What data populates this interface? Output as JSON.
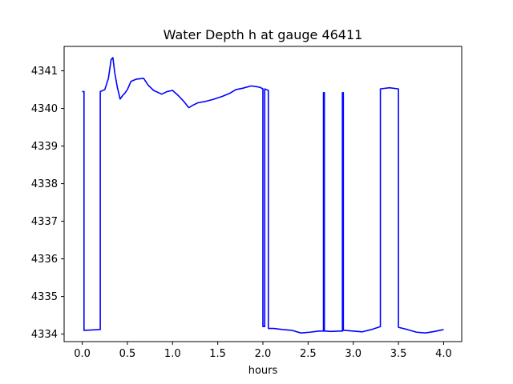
{
  "chart_data": {
    "type": "line",
    "title": "Water Depth h at gauge 46411",
    "xlabel": "hours",
    "ylabel": "",
    "xlim": [
      -0.2,
      4.2
    ],
    "ylim": [
      4333.8,
      4341.65
    ],
    "xticks": [
      0.0,
      0.5,
      1.0,
      1.5,
      2.0,
      2.5,
      3.0,
      3.5,
      4.0
    ],
    "xtick_labels": [
      "0.0",
      "0.5",
      "1.0",
      "1.5",
      "2.0",
      "2.5",
      "3.0",
      "3.5",
      "4.0"
    ],
    "yticks": [
      4334,
      4335,
      4336,
      4337,
      4338,
      4339,
      4340,
      4341
    ],
    "ytick_labels": [
      "4334",
      "4335",
      "4336",
      "4337",
      "4338",
      "4339",
      "4340",
      "4341"
    ],
    "grid": false,
    "series": [
      {
        "color": "#0000ff",
        "x": [
          0.0,
          0.02,
          0.02,
          0.2,
          0.2,
          0.25,
          0.29,
          0.32,
          0.34,
          0.36,
          0.39,
          0.42,
          0.45,
          0.47,
          0.5,
          0.54,
          0.6,
          0.68,
          0.73,
          0.79,
          0.88,
          0.94,
          1.0,
          1.06,
          1.12,
          1.18,
          1.22,
          1.28,
          1.35,
          1.45,
          1.55,
          1.63,
          1.7,
          1.78,
          1.87,
          1.93,
          1.97,
          2.0,
          2.0,
          2.02,
          2.02,
          2.04,
          2.06,
          2.06,
          2.12,
          2.22,
          2.32,
          2.42,
          2.52,
          2.62,
          2.67,
          2.67,
          2.68,
          2.68,
          2.69,
          2.69,
          2.75,
          2.85,
          2.88,
          2.88,
          2.89,
          2.89,
          2.9,
          2.9,
          3.0,
          3.1,
          3.2,
          3.3,
          3.3,
          3.4,
          3.5,
          3.5,
          3.6,
          3.7,
          3.8,
          3.9,
          4.0
        ],
        "y": [
          4340.45,
          4340.45,
          4334.1,
          4334.12,
          4340.45,
          4340.5,
          4340.8,
          4341.3,
          4341.35,
          4340.95,
          4340.55,
          4340.25,
          4340.35,
          4340.4,
          4340.5,
          4340.72,
          4340.78,
          4340.8,
          4340.62,
          4340.48,
          4340.38,
          4340.45,
          4340.48,
          4340.35,
          4340.2,
          4340.02,
          4340.08,
          4340.15,
          4340.18,
          4340.24,
          4340.32,
          4340.4,
          4340.5,
          4340.54,
          4340.6,
          4340.58,
          4340.56,
          4340.52,
          4334.2,
          4334.2,
          4340.52,
          4340.5,
          4340.48,
          4334.15,
          4334.15,
          4334.12,
          4334.1,
          4334.03,
          4334.05,
          4334.08,
          4334.08,
          4340.42,
          4340.42,
          4334.08,
          4334.08,
          4334.08,
          4334.07,
          4334.08,
          4334.08,
          4340.42,
          4340.42,
          4334.1,
          4334.1,
          4334.1,
          4334.08,
          4334.06,
          4334.12,
          4334.2,
          4340.52,
          4340.55,
          4340.52,
          4334.18,
          4334.12,
          4334.05,
          4334.03,
          4334.07,
          4334.12
        ]
      }
    ]
  }
}
